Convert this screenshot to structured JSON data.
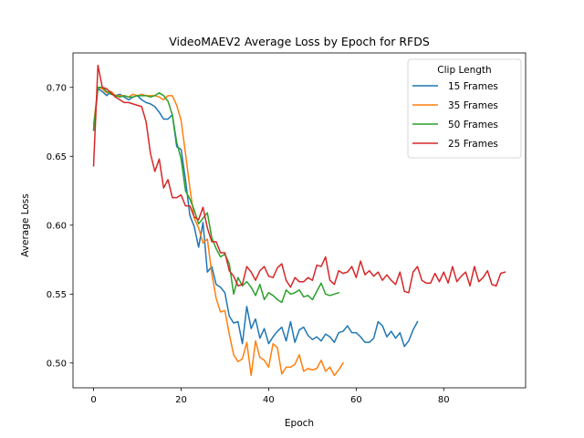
{
  "chart_data": {
    "type": "line",
    "title": "VideoMAEV2 Average Loss by Epoch for RFDS",
    "xlabel": "Epoch",
    "ylabel": "Average Loss",
    "xlim": [
      -4.7,
      98.7
    ],
    "ylim": [
      0.482,
      0.725
    ],
    "xticks": [
      0,
      20,
      40,
      60,
      80
    ],
    "yticks": [
      0.5,
      0.55,
      0.6,
      0.65,
      0.7
    ],
    "ytick_labels": [
      "0.50",
      "0.55",
      "0.60",
      "0.65",
      "0.70"
    ],
    "grid": false,
    "legend": {
      "title": "Clip Length",
      "placement": "top-right"
    },
    "series": [
      {
        "name": "15 Frames",
        "color": "#1f77b4",
        "x": [
          0,
          1,
          2,
          3,
          4,
          5,
          6,
          7,
          8,
          9,
          10,
          11,
          12,
          13,
          14,
          15,
          16,
          17,
          18,
          19,
          20,
          21,
          22,
          23,
          24,
          25,
          26,
          27,
          28,
          29,
          30,
          31,
          32,
          33,
          34,
          35,
          36,
          37,
          38,
          39,
          40,
          41,
          42,
          43,
          44,
          45,
          46,
          47,
          48,
          49,
          50,
          51,
          52,
          53,
          54,
          55,
          56,
          57,
          58,
          59,
          60,
          61,
          62,
          63,
          64,
          65,
          66,
          67,
          68,
          69,
          70,
          71,
          72,
          73,
          74
        ],
        "y": [
          0.669,
          0.699,
          0.697,
          0.694,
          0.697,
          0.694,
          0.695,
          0.693,
          0.691,
          0.693,
          0.694,
          0.691,
          0.689,
          0.688,
          0.686,
          0.682,
          0.677,
          0.677,
          0.68,
          0.657,
          0.655,
          0.633,
          0.607,
          0.599,
          0.584,
          0.602,
          0.566,
          0.57,
          0.557,
          0.555,
          0.551,
          0.534,
          0.529,
          0.53,
          0.514,
          0.541,
          0.525,
          0.532,
          0.518,
          0.525,
          0.514,
          0.519,
          0.523,
          0.526,
          0.516,
          0.53,
          0.515,
          0.524,
          0.526,
          0.52,
          0.517,
          0.519,
          0.516,
          0.521,
          0.519,
          0.515,
          0.522,
          0.523,
          0.527,
          0.522,
          0.522,
          0.519,
          0.515,
          0.515,
          0.518,
          0.53,
          0.527,
          0.519,
          0.523,
          0.518,
          0.522,
          0.512,
          0.516,
          0.524,
          0.53
        ]
      },
      {
        "name": "35 Frames",
        "color": "#ff7f0e",
        "x": [
          0,
          1,
          2,
          3,
          4,
          5,
          6,
          7,
          8,
          9,
          10,
          11,
          12,
          13,
          14,
          15,
          16,
          17,
          18,
          19,
          20,
          21,
          22,
          23,
          24,
          25,
          26,
          27,
          28,
          29,
          30,
          31,
          32,
          33,
          34,
          35,
          36,
          37,
          38,
          39,
          40,
          41,
          42,
          43,
          44,
          45,
          46,
          47,
          48,
          49,
          50,
          51,
          52,
          53,
          54,
          55,
          56,
          57
        ],
        "y": [
          0.673,
          0.7,
          0.699,
          0.696,
          0.697,
          0.694,
          0.694,
          0.694,
          0.693,
          0.695,
          0.694,
          0.695,
          0.694,
          0.694,
          0.694,
          0.693,
          0.691,
          0.694,
          0.694,
          0.687,
          0.676,
          0.652,
          0.627,
          0.605,
          0.598,
          0.587,
          0.59,
          0.565,
          0.547,
          0.537,
          0.538,
          0.521,
          0.506,
          0.501,
          0.503,
          0.515,
          0.491,
          0.516,
          0.504,
          0.502,
          0.497,
          0.514,
          0.511,
          0.492,
          0.497,
          0.497,
          0.499,
          0.506,
          0.494,
          0.496,
          0.495,
          0.496,
          0.502,
          0.494,
          0.497,
          0.491,
          0.495,
          0.5
        ]
      },
      {
        "name": "50 Frames",
        "color": "#2ca02c",
        "x": [
          0,
          1,
          2,
          3,
          4,
          5,
          6,
          7,
          8,
          9,
          10,
          11,
          12,
          13,
          14,
          15,
          16,
          17,
          18,
          19,
          20,
          21,
          22,
          23,
          24,
          25,
          26,
          27,
          28,
          29,
          30,
          31,
          32,
          33,
          34,
          35,
          36,
          37,
          38,
          39,
          40,
          41,
          42,
          43,
          44,
          45,
          46,
          47,
          48,
          49,
          50,
          51,
          52,
          53,
          54,
          55,
          56
        ],
        "y": [
          0.669,
          0.7,
          0.7,
          0.697,
          0.695,
          0.694,
          0.693,
          0.694,
          0.693,
          0.693,
          0.694,
          0.694,
          0.694,
          0.693,
          0.694,
          0.696,
          0.694,
          0.69,
          0.68,
          0.66,
          0.648,
          0.625,
          0.619,
          0.611,
          0.601,
          0.605,
          0.609,
          0.591,
          0.583,
          0.577,
          0.579,
          0.572,
          0.55,
          0.562,
          0.556,
          0.559,
          0.555,
          0.549,
          0.557,
          0.546,
          0.551,
          0.549,
          0.546,
          0.544,
          0.553,
          0.55,
          0.551,
          0.553,
          0.548,
          0.549,
          0.546,
          0.552,
          0.558,
          0.55,
          0.549,
          0.55,
          0.551
        ]
      },
      {
        "name": "25 Frames",
        "color": "#d62728",
        "x": [
          0,
          1,
          2,
          3,
          4,
          5,
          6,
          7,
          8,
          9,
          10,
          11,
          12,
          13,
          14,
          15,
          16,
          17,
          18,
          19,
          20,
          21,
          22,
          23,
          24,
          25,
          26,
          27,
          28,
          29,
          30,
          31,
          32,
          33,
          34,
          35,
          36,
          37,
          38,
          39,
          40,
          41,
          42,
          43,
          44,
          45,
          46,
          47,
          48,
          49,
          50,
          51,
          52,
          53,
          54,
          55,
          56,
          57,
          58,
          59,
          60,
          61,
          62,
          63,
          64,
          65,
          66,
          67,
          68,
          69,
          70,
          71,
          72,
          73,
          74,
          75,
          76,
          77,
          78,
          79,
          80,
          81,
          82,
          83,
          84,
          85,
          86,
          87,
          88,
          89,
          90,
          91,
          92,
          93,
          94
        ],
        "y": [
          0.643,
          0.716,
          0.7,
          0.699,
          0.696,
          0.693,
          0.691,
          0.689,
          0.689,
          0.688,
          0.687,
          0.686,
          0.675,
          0.652,
          0.639,
          0.648,
          0.627,
          0.633,
          0.62,
          0.62,
          0.622,
          0.614,
          0.614,
          0.606,
          0.604,
          0.613,
          0.598,
          0.588,
          0.588,
          0.58,
          0.58,
          0.567,
          0.563,
          0.556,
          0.557,
          0.57,
          0.566,
          0.56,
          0.567,
          0.57,
          0.563,
          0.562,
          0.569,
          0.572,
          0.56,
          0.555,
          0.562,
          0.559,
          0.559,
          0.562,
          0.56,
          0.571,
          0.57,
          0.577,
          0.56,
          0.557,
          0.567,
          0.565,
          0.566,
          0.57,
          0.562,
          0.574,
          0.564,
          0.567,
          0.563,
          0.566,
          0.56,
          0.564,
          0.56,
          0.557,
          0.566,
          0.552,
          0.551,
          0.566,
          0.57,
          0.56,
          0.558,
          0.558,
          0.565,
          0.559,
          0.566,
          0.558,
          0.57,
          0.559,
          0.563,
          0.566,
          0.556,
          0.57,
          0.559,
          0.562,
          0.567,
          0.557,
          0.556,
          0.565,
          0.566
        ]
      }
    ]
  }
}
